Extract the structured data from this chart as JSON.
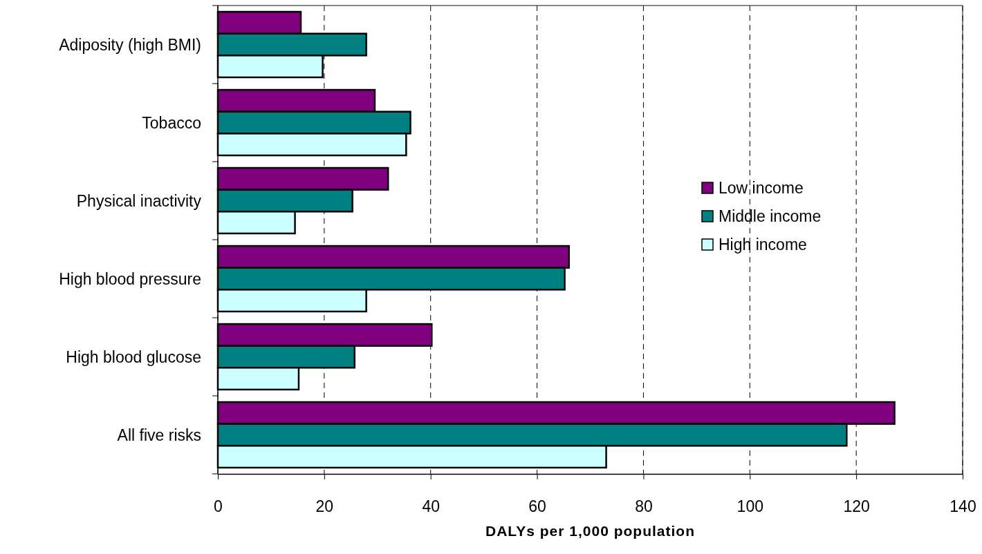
{
  "chart_data": {
    "type": "bar",
    "orientation": "horizontal",
    "xlabel": "DALYs per 1,000 population",
    "categories": [
      "Adiposity (high BMI)",
      "Tobacco",
      "Physical inactivity",
      "High blood pressure",
      "High blood glucose",
      "All five risks"
    ],
    "series": [
      {
        "name": "Low income",
        "color": "#800080",
        "values": [
          15.6,
          29.5,
          32.0,
          66.0,
          40.2,
          127.2
        ]
      },
      {
        "name": "Middle income",
        "color": "#008080",
        "values": [
          27.9,
          36.2,
          25.3,
          65.2,
          25.7,
          118.2
        ]
      },
      {
        "name": "High income",
        "color": "#ccffff",
        "values": [
          19.7,
          35.4,
          14.5,
          27.9,
          15.2,
          73.0
        ]
      }
    ],
    "xlim": [
      0,
      140
    ],
    "xticks": [
      0,
      20,
      40,
      60,
      80,
      100,
      120,
      140
    ],
    "grid": "x",
    "legend": "right"
  }
}
